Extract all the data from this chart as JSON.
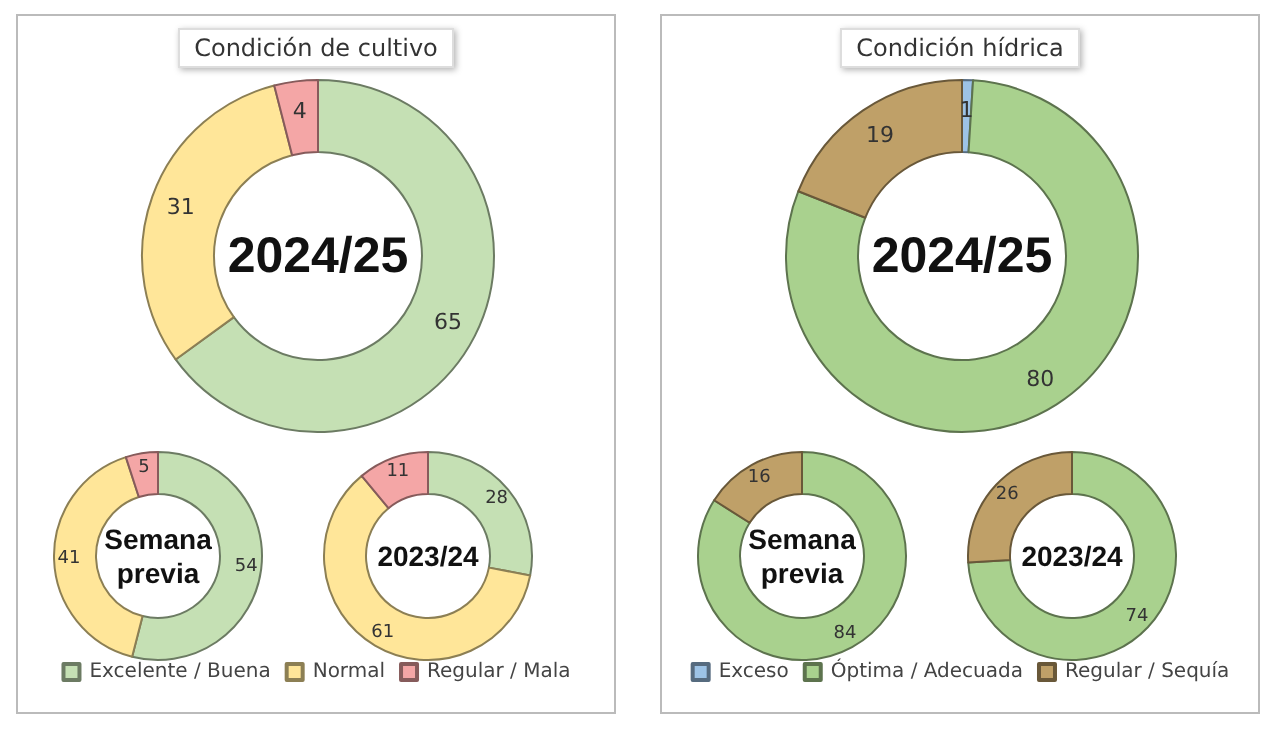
{
  "chart_data": [
    {
      "type": "donut",
      "title": "Condición de cultivo",
      "categories": [
        "Excelente / Buena",
        "Normal",
        "Regular / Mala"
      ],
      "colors": [
        "#c5e0b4",
        "#ffe699",
        "#f4a6a6"
      ],
      "legend": "bottom",
      "data_labels": true,
      "series": [
        {
          "name": "2024/25",
          "values": [
            65,
            31,
            4
          ]
        },
        {
          "name": "Semana previa",
          "values": [
            54,
            41,
            5
          ]
        },
        {
          "name": "2023/24",
          "values": [
            28,
            61,
            11
          ]
        }
      ]
    },
    {
      "type": "donut",
      "title": "Condición hídrica",
      "categories": [
        "Exceso",
        "Óptima / Adecuada",
        "Regular / Sequía"
      ],
      "colors": [
        "#9dc3e6",
        "#a9d18e",
        "#bfa068"
      ],
      "legend": "bottom",
      "series": [
        {
          "name": "2024/25",
          "values": [
            1,
            80,
            19
          ],
          "value_labels": [
            "1",
            "80",
            "19"
          ]
        },
        {
          "name": "Semana previa",
          "values": [
            0,
            84,
            16
          ],
          "value_labels": [
            null,
            "84",
            "16"
          ]
        },
        {
          "name": "2023/24",
          "values": [
            0,
            74,
            26
          ],
          "value_labels": [
            null,
            "74",
            "26"
          ]
        }
      ]
    }
  ]
}
